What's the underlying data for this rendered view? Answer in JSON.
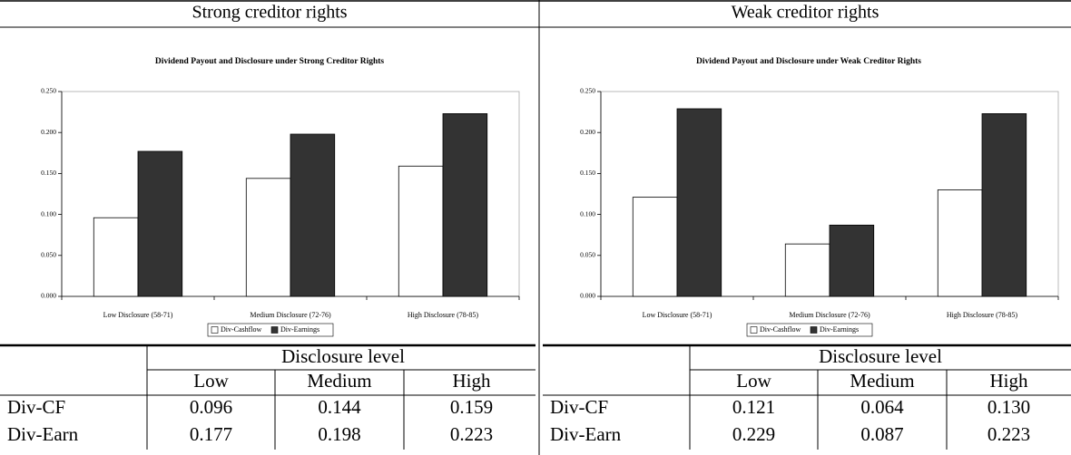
{
  "panels": [
    {
      "heading": "Strong creditor rights",
      "table": {
        "group_header": "Disclosure level",
        "columns": [
          "Low",
          "Medium",
          "High"
        ],
        "rows": [
          [
            "Div-CF",
            "0.096",
            "0.144",
            "0.159"
          ],
          [
            "Div-Earn",
            "0.177",
            "0.198",
            "0.223"
          ]
        ]
      }
    },
    {
      "heading": "Weak creditor rights",
      "table": {
        "group_header": "Disclosure level",
        "columns": [
          "Low",
          "Medium",
          "High"
        ],
        "rows": [
          [
            "Div-CF",
            "0.121",
            "0.064",
            "0.130"
          ],
          [
            "Div-Earn",
            "0.229",
            "0.087",
            "0.223"
          ]
        ]
      }
    }
  ],
  "chart_data": [
    {
      "type": "bar",
      "title": "Dividend Payout and Disclosure under Strong Creditor Rights",
      "categories": [
        "Low Disclosure (58-71)",
        "Medium Disclosure (72-76)",
        "High Disclosure (78-85)"
      ],
      "series": [
        {
          "name": "Div-Cashflow",
          "color": "#ffffff",
          "values": [
            0.096,
            0.144,
            0.159
          ]
        },
        {
          "name": "Div-Earnings",
          "color": "#333333",
          "values": [
            0.177,
            0.198,
            0.223
          ]
        }
      ],
      "ylim": [
        0,
        0.25
      ],
      "yticks": [
        {
          "value": 0,
          "label": "0.000"
        },
        {
          "value": 0.05,
          "label": "0.050"
        },
        {
          "value": 0.1,
          "label": "0.100"
        },
        {
          "value": 0.15,
          "label": "0.150"
        },
        {
          "value": 0.2,
          "label": "0.200"
        },
        {
          "value": 0.25,
          "label": "0.250"
        }
      ],
      "legend": "bottom"
    },
    {
      "type": "bar",
      "title": "Dividend Payout and Disclosure under Weak Creditor Rights",
      "categories": [
        "Low Disclosure (58-71)",
        "Medium Disclosure (72-76)",
        "High Disclosure (78-85)"
      ],
      "series": [
        {
          "name": "Div-Cashflow",
          "color": "#ffffff",
          "values": [
            0.121,
            0.064,
            0.13
          ]
        },
        {
          "name": "Div-Earnings",
          "color": "#333333",
          "values": [
            0.229,
            0.087,
            0.223
          ]
        }
      ],
      "ylim": [
        0,
        0.25
      ],
      "yticks": [
        {
          "value": 0,
          "label": "0.000"
        },
        {
          "value": 0.05,
          "label": "0.050"
        },
        {
          "value": 0.1,
          "label": "0.100"
        },
        {
          "value": 0.15,
          "label": "0.150"
        },
        {
          "value": 0.2,
          "label": "0.200"
        },
        {
          "value": 0.25,
          "label": "0.250"
        }
      ],
      "legend": "bottom"
    }
  ]
}
